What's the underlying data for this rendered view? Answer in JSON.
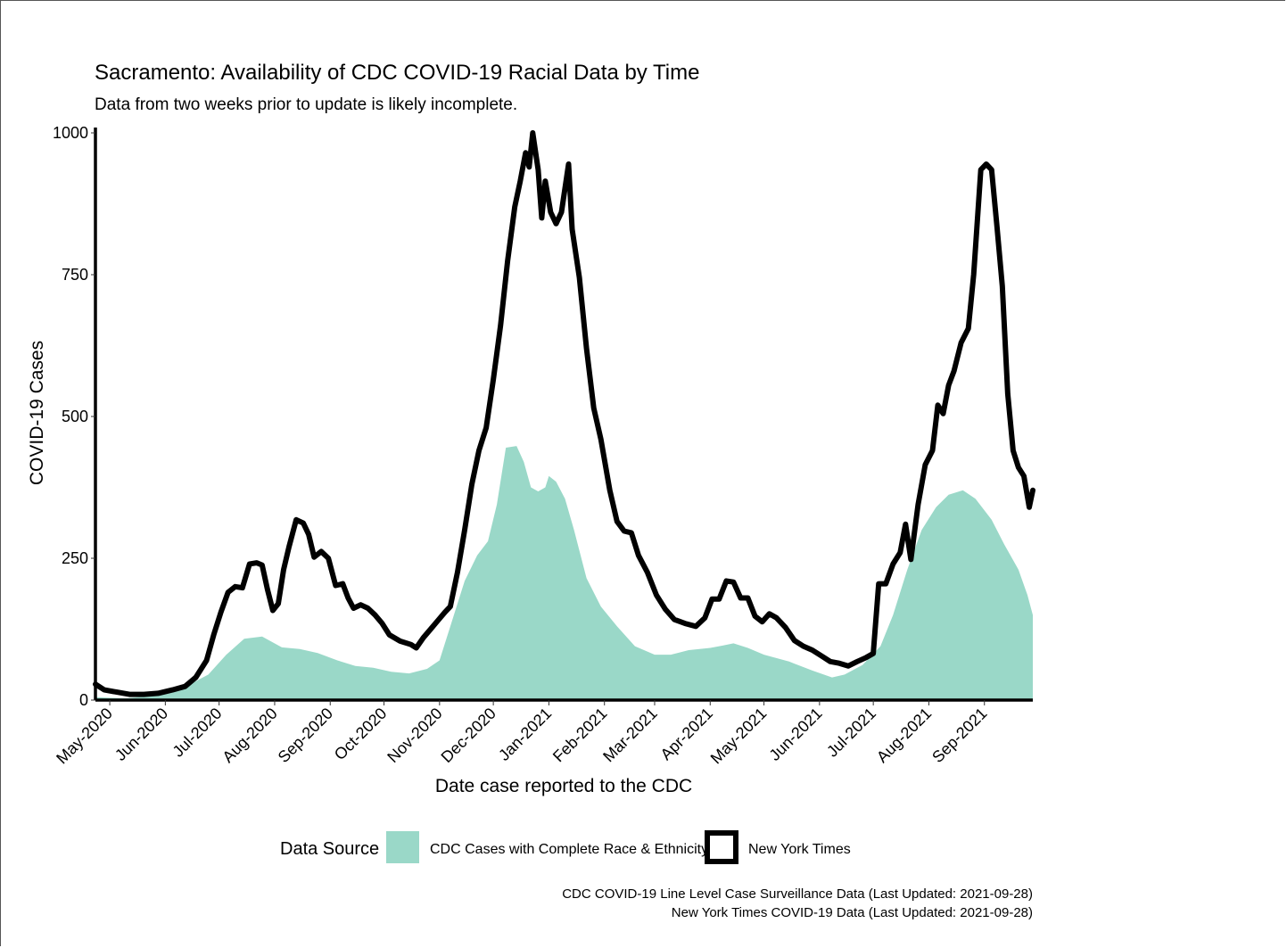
{
  "chart_data": {
    "type": "area",
    "title": "Sacramento: Availability of CDC COVID-19 Racial Data by Time",
    "subtitle": "Data from two weeks prior to update is likely incomplete.",
    "xlabel": "Date case reported to the CDC",
    "ylabel": "COVID-19 Cases",
    "ylim": [
      0,
      1000
    ],
    "xlim": [
      "2020-04-23",
      "2021-09-28"
    ],
    "yticks": [
      0,
      250,
      500,
      750,
      1000
    ],
    "xticks": [
      {
        "date": "2020-05-01",
        "label": "May-2020"
      },
      {
        "date": "2020-06-01",
        "label": "Jun-2020"
      },
      {
        "date": "2020-07-01",
        "label": "Jul-2020"
      },
      {
        "date": "2020-08-01",
        "label": "Aug-2020"
      },
      {
        "date": "2020-09-01",
        "label": "Sep-2020"
      },
      {
        "date": "2020-10-01",
        "label": "Oct-2020"
      },
      {
        "date": "2020-11-01",
        "label": "Nov-2020"
      },
      {
        "date": "2020-12-01",
        "label": "Dec-2020"
      },
      {
        "date": "2021-01-01",
        "label": "Jan-2021"
      },
      {
        "date": "2021-02-01",
        "label": "Feb-2021"
      },
      {
        "date": "2021-03-01",
        "label": "Mar-2021"
      },
      {
        "date": "2021-04-01",
        "label": "Apr-2021"
      },
      {
        "date": "2021-05-01",
        "label": "May-2021"
      },
      {
        "date": "2021-06-01",
        "label": "Jun-2021"
      },
      {
        "date": "2021-07-01",
        "label": "Jul-2021"
      },
      {
        "date": "2021-08-01",
        "label": "Aug-2021"
      },
      {
        "date": "2021-09-01",
        "label": "Sep-2021"
      }
    ],
    "grid": false,
    "legend_position": "bottom",
    "legend_title": "Data Source",
    "series": [
      {
        "name": "CDC Cases with Complete Race & Ethnicity",
        "kind": "area",
        "color": "#9ad8c8",
        "points": [
          [
            "2020-04-23",
            5
          ],
          [
            "2020-05-10",
            3
          ],
          [
            "2020-05-25",
            8
          ],
          [
            "2020-06-10",
            20
          ],
          [
            "2020-06-25",
            45
          ],
          [
            "2020-07-05",
            80
          ],
          [
            "2020-07-15",
            108
          ],
          [
            "2020-07-25",
            112
          ],
          [
            "2020-08-05",
            93
          ],
          [
            "2020-08-15",
            90
          ],
          [
            "2020-08-25",
            83
          ],
          [
            "2020-09-05",
            70
          ],
          [
            "2020-09-15",
            60
          ],
          [
            "2020-09-25",
            57
          ],
          [
            "2020-10-05",
            50
          ],
          [
            "2020-10-15",
            47
          ],
          [
            "2020-10-25",
            55
          ],
          [
            "2020-11-01",
            70
          ],
          [
            "2020-11-08",
            140
          ],
          [
            "2020-11-15",
            210
          ],
          [
            "2020-11-22",
            255
          ],
          [
            "2020-11-28",
            280
          ],
          [
            "2020-12-03",
            345
          ],
          [
            "2020-12-08",
            445
          ],
          [
            "2020-12-14",
            448
          ],
          [
            "2020-12-18",
            420
          ],
          [
            "2020-12-22",
            375
          ],
          [
            "2020-12-26",
            368
          ],
          [
            "2020-12-30",
            375
          ],
          [
            "2021-01-01",
            395
          ],
          [
            "2021-01-05",
            385
          ],
          [
            "2021-01-10",
            355
          ],
          [
            "2021-01-15",
            300
          ],
          [
            "2021-01-22",
            215
          ],
          [
            "2021-01-30",
            165
          ],
          [
            "2021-02-08",
            130
          ],
          [
            "2021-02-18",
            95
          ],
          [
            "2021-03-01",
            80
          ],
          [
            "2021-03-10",
            80
          ],
          [
            "2021-03-20",
            88
          ],
          [
            "2021-04-01",
            92
          ],
          [
            "2021-04-08",
            96
          ],
          [
            "2021-04-14",
            100
          ],
          [
            "2021-04-22",
            92
          ],
          [
            "2021-05-01",
            80
          ],
          [
            "2021-05-15",
            68
          ],
          [
            "2021-05-28",
            52
          ],
          [
            "2021-06-08",
            40
          ],
          [
            "2021-06-15",
            45
          ],
          [
            "2021-06-25",
            62
          ],
          [
            "2021-07-05",
            95
          ],
          [
            "2021-07-12",
            150
          ],
          [
            "2021-07-20",
            230
          ],
          [
            "2021-07-28",
            300
          ],
          [
            "2021-08-05",
            340
          ],
          [
            "2021-08-12",
            362
          ],
          [
            "2021-08-20",
            370
          ],
          [
            "2021-08-27",
            355
          ],
          [
            "2021-09-05",
            318
          ],
          [
            "2021-09-12",
            275
          ],
          [
            "2021-09-20",
            230
          ],
          [
            "2021-09-25",
            185
          ],
          [
            "2021-09-28",
            150
          ]
        ]
      },
      {
        "name": "New York Times",
        "kind": "line",
        "color": "#000000",
        "points": [
          [
            "2020-04-23",
            28
          ],
          [
            "2020-04-28",
            18
          ],
          [
            "2020-05-05",
            14
          ],
          [
            "2020-05-12",
            10
          ],
          [
            "2020-05-20",
            10
          ],
          [
            "2020-05-28",
            12
          ],
          [
            "2020-06-05",
            18
          ],
          [
            "2020-06-12",
            24
          ],
          [
            "2020-06-18",
            40
          ],
          [
            "2020-06-24",
            70
          ],
          [
            "2020-06-28",
            115
          ],
          [
            "2020-07-02",
            155
          ],
          [
            "2020-07-06",
            190
          ],
          [
            "2020-07-10",
            200
          ],
          [
            "2020-07-14",
            198
          ],
          [
            "2020-07-18",
            240
          ],
          [
            "2020-07-22",
            242
          ],
          [
            "2020-07-25",
            238
          ],
          [
            "2020-07-28",
            195
          ],
          [
            "2020-07-31",
            158
          ],
          [
            "2020-08-03",
            170
          ],
          [
            "2020-08-06",
            230
          ],
          [
            "2020-08-09",
            270
          ],
          [
            "2020-08-13",
            318
          ],
          [
            "2020-08-17",
            312
          ],
          [
            "2020-08-20",
            292
          ],
          [
            "2020-08-23",
            252
          ],
          [
            "2020-08-27",
            262
          ],
          [
            "2020-08-31",
            250
          ],
          [
            "2020-09-04",
            202
          ],
          [
            "2020-09-08",
            205
          ],
          [
            "2020-09-11",
            180
          ],
          [
            "2020-09-14",
            162
          ],
          [
            "2020-09-18",
            168
          ],
          [
            "2020-09-22",
            162
          ],
          [
            "2020-09-26",
            150
          ],
          [
            "2020-09-30",
            135
          ],
          [
            "2020-10-04",
            115
          ],
          [
            "2020-10-10",
            104
          ],
          [
            "2020-10-16",
            98
          ],
          [
            "2020-10-19",
            92
          ],
          [
            "2020-10-23",
            110
          ],
          [
            "2020-10-27",
            125
          ],
          [
            "2020-10-31",
            140
          ],
          [
            "2020-11-04",
            155
          ],
          [
            "2020-11-07",
            165
          ],
          [
            "2020-11-11",
            225
          ],
          [
            "2020-11-15",
            300
          ],
          [
            "2020-11-19",
            380
          ],
          [
            "2020-11-23",
            440
          ],
          [
            "2020-11-27",
            480
          ],
          [
            "2020-12-01",
            565
          ],
          [
            "2020-12-05",
            660
          ],
          [
            "2020-12-09",
            775
          ],
          [
            "2020-12-13",
            870
          ],
          [
            "2020-12-16",
            915
          ],
          [
            "2020-12-19",
            965
          ],
          [
            "2020-12-21",
            940
          ],
          [
            "2020-12-23",
            1000
          ],
          [
            "2020-12-26",
            935
          ],
          [
            "2020-12-28",
            850
          ],
          [
            "2020-12-30",
            915
          ],
          [
            "2021-01-02",
            860
          ],
          [
            "2021-01-05",
            840
          ],
          [
            "2021-01-08",
            860
          ],
          [
            "2021-01-12",
            945
          ],
          [
            "2021-01-14",
            830
          ],
          [
            "2021-01-18",
            745
          ],
          [
            "2021-01-22",
            620
          ],
          [
            "2021-01-26",
            515
          ],
          [
            "2021-01-30",
            460
          ],
          [
            "2021-02-04",
            370
          ],
          [
            "2021-02-08",
            315
          ],
          [
            "2021-02-12",
            298
          ],
          [
            "2021-02-16",
            295
          ],
          [
            "2021-02-20",
            255
          ],
          [
            "2021-02-25",
            225
          ],
          [
            "2021-03-02",
            185
          ],
          [
            "2021-03-07",
            160
          ],
          [
            "2021-03-12",
            142
          ],
          [
            "2021-03-18",
            135
          ],
          [
            "2021-03-24",
            130
          ],
          [
            "2021-03-29",
            145
          ],
          [
            "2021-04-02",
            178
          ],
          [
            "2021-04-06",
            178
          ],
          [
            "2021-04-10",
            210
          ],
          [
            "2021-04-14",
            208
          ],
          [
            "2021-04-18",
            180
          ],
          [
            "2021-04-22",
            180
          ],
          [
            "2021-04-26",
            148
          ],
          [
            "2021-04-30",
            138
          ],
          [
            "2021-05-04",
            152
          ],
          [
            "2021-05-08",
            145
          ],
          [
            "2021-05-13",
            128
          ],
          [
            "2021-05-18",
            105
          ],
          [
            "2021-05-23",
            95
          ],
          [
            "2021-05-28",
            88
          ],
          [
            "2021-06-02",
            78
          ],
          [
            "2021-06-07",
            68
          ],
          [
            "2021-06-12",
            65
          ],
          [
            "2021-06-17",
            60
          ],
          [
            "2021-06-22",
            68
          ],
          [
            "2021-06-27",
            75
          ],
          [
            "2021-07-01",
            82
          ],
          [
            "2021-07-04",
            205
          ],
          [
            "2021-07-08",
            205
          ],
          [
            "2021-07-12",
            240
          ],
          [
            "2021-07-16",
            260
          ],
          [
            "2021-07-19",
            310
          ],
          [
            "2021-07-22",
            248
          ],
          [
            "2021-07-26",
            345
          ],
          [
            "2021-07-30",
            415
          ],
          [
            "2021-08-03",
            440
          ],
          [
            "2021-08-06",
            520
          ],
          [
            "2021-08-09",
            505
          ],
          [
            "2021-08-12",
            555
          ],
          [
            "2021-08-15",
            580
          ],
          [
            "2021-08-19",
            630
          ],
          [
            "2021-08-23",
            655
          ],
          [
            "2021-08-26",
            750
          ],
          [
            "2021-08-30",
            935
          ],
          [
            "2021-09-02",
            945
          ],
          [
            "2021-09-05",
            935
          ],
          [
            "2021-09-08",
            835
          ],
          [
            "2021-09-11",
            730
          ],
          [
            "2021-09-14",
            540
          ],
          [
            "2021-09-17",
            440
          ],
          [
            "2021-09-20",
            410
          ],
          [
            "2021-09-23",
            395
          ],
          [
            "2021-09-26",
            340
          ],
          [
            "2021-09-28",
            370
          ]
        ]
      }
    ],
    "caption": [
      "CDC COVID-19 Line Level Case Surveillance Data (Last Updated: 2021-09-28)",
      "New York Times COVID-19 Data (Last Updated: 2021-09-28)"
    ]
  }
}
